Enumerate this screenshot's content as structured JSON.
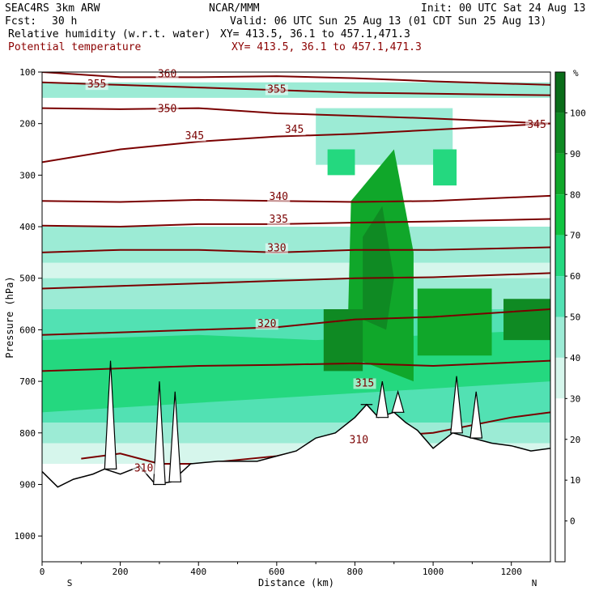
{
  "header": {
    "model": "SEAC4RS  3km ARW",
    "org": "NCAR/MMM",
    "init": "Init: 00 UTC Sat 24 Aug 13",
    "fcst_label": "Fcst:",
    "fcst_value": "30 h",
    "valid": "Valid: 06 UTC Sun 25 Aug 13 (01 CDT Sun 25 Aug 13)",
    "field1": "Relative humidity (w.r.t. water)",
    "field1_xy": "XY= 413.5, 36.1 to 457.1,471.3",
    "field2": "Potential temperature",
    "field2_xy": "XY= 413.5, 36.1 to 457.1,471.3"
  },
  "chart_data": {
    "type": "cross-section",
    "xlabel": "Distance (km)",
    "ylabel": "Pressure (hPa)",
    "xlim": [
      0,
      1300
    ],
    "ylim": [
      1050,
      100
    ],
    "x_ticks": [
      0,
      200,
      400,
      600,
      800,
      1000,
      1200
    ],
    "y_ticks": [
      100,
      200,
      300,
      400,
      500,
      600,
      700,
      800,
      900,
      1000
    ],
    "x_end_labels": {
      "left": "S",
      "right": "N"
    },
    "colorbar": {
      "unit": "%",
      "tick_labels": [
        0,
        10,
        20,
        30,
        40,
        50,
        60,
        70,
        80,
        90,
        100
      ],
      "colors": [
        "#ffffff",
        "#ffffff",
        "#ffffff",
        "#ffffff",
        "#d6f6ec",
        "#9cebd5",
        "#52e1b3",
        "#24d87f",
        "#10c441",
        "#10a72a",
        "#0f8a23",
        "#0a6c19"
      ]
    },
    "terrain_color": "#000000",
    "isentrope_color": "#7a0000",
    "isentropes": [
      {
        "theta": 360,
        "x": [
          0,
          200,
          400,
          600,
          800,
          1000,
          1300
        ],
        "p": [
          100,
          110,
          110,
          108,
          112,
          118,
          125
        ]
      },
      {
        "theta": 355,
        "x": [
          0,
          200,
          400,
          600,
          800,
          1000,
          1300
        ],
        "p": [
          120,
          125,
          130,
          135,
          140,
          142,
          145
        ]
      },
      {
        "theta": 350,
        "x": [
          0,
          200,
          400,
          600,
          800,
          1000,
          1300
        ],
        "p": [
          170,
          172,
          170,
          180,
          185,
          190,
          200
        ]
      },
      {
        "theta": 345,
        "x": [
          0,
          200,
          400,
          600,
          800,
          1000,
          1300
        ],
        "p": [
          275,
          250,
          235,
          225,
          220,
          212,
          200
        ]
      },
      {
        "theta": 340,
        "x": [
          0,
          200,
          400,
          600,
          800,
          1000,
          1300
        ],
        "p": [
          350,
          352,
          348,
          350,
          352,
          350,
          340
        ]
      },
      {
        "theta": 335,
        "x": [
          0,
          200,
          400,
          600,
          800,
          1000,
          1300
        ],
        "p": [
          398,
          400,
          395,
          395,
          392,
          390,
          385
        ]
      },
      {
        "theta": 330,
        "x": [
          0,
          200,
          400,
          600,
          800,
          1000,
          1300
        ],
        "p": [
          450,
          445,
          445,
          450,
          445,
          445,
          440
        ]
      },
      {
        "theta": 325,
        "x": [
          0,
          200,
          400,
          600,
          800,
          1000,
          1300
        ],
        "p": [
          520,
          515,
          510,
          505,
          500,
          498,
          490
        ]
      },
      {
        "theta": 320,
        "x": [
          0,
          200,
          400,
          600,
          800,
          1000,
          1300
        ],
        "p": [
          610,
          605,
          600,
          595,
          580,
          575,
          560
        ]
      },
      {
        "theta": 315,
        "x": [
          0,
          200,
          400,
          600,
          800,
          1000,
          1300
        ],
        "p": [
          680,
          675,
          670,
          668,
          665,
          670,
          660
        ]
      },
      {
        "theta": 310,
        "x": [
          100,
          200,
          300,
          400,
          600,
          800,
          1000,
          1200,
          1300
        ],
        "p": [
          850,
          840,
          860,
          860,
          845,
          810,
          800,
          770,
          760
        ]
      }
    ],
    "contour_labels": [
      {
        "text": "360",
        "x": 320,
        "p": 110
      },
      {
        "text": "355",
        "x": 140,
        "p": 130
      },
      {
        "text": "355",
        "x": 600,
        "p": 140
      },
      {
        "text": "350",
        "x": 320,
        "p": 178
      },
      {
        "text": "345",
        "x": 390,
        "p": 230
      },
      {
        "text": "345",
        "x": 645,
        "p": 218
      },
      {
        "text": "345",
        "x": 1265,
        "p": 208
      },
      {
        "text": "340",
        "x": 605,
        "p": 348
      },
      {
        "text": "335",
        "x": 605,
        "p": 392
      },
      {
        "text": "330",
        "x": 600,
        "p": 448
      },
      {
        "text": "320",
        "x": 575,
        "p": 595
      },
      {
        "text": "315",
        "x": 825,
        "p": 710
      },
      {
        "text": "310",
        "x": 810,
        "p": 820
      },
      {
        "text": "310",
        "x": 260,
        "p": 875
      }
    ],
    "terrain_surface": {
      "x": [
        0,
        40,
        80,
        130,
        160,
        200,
        250,
        290,
        330,
        380,
        450,
        550,
        650,
        700,
        750,
        800,
        830,
        860,
        900,
        930,
        960,
        1000,
        1050,
        1100,
        1150,
        1200,
        1250,
        1300
      ],
      "p": [
        875,
        905,
        890,
        880,
        870,
        880,
        865,
        900,
        895,
        860,
        855,
        855,
        835,
        810,
        800,
        770,
        745,
        770,
        760,
        780,
        795,
        830,
        800,
        810,
        820,
        825,
        835,
        830
      ]
    },
    "terrain_peaks": [
      {
        "x": 175,
        "p": 660
      },
      {
        "x": 300,
        "p": 700
      },
      {
        "x": 340,
        "p": 720
      },
      {
        "x": 830,
        "p": 745
      },
      {
        "x": 870,
        "p": 700
      },
      {
        "x": 910,
        "p": 720
      },
      {
        "x": 1060,
        "p": 690
      },
      {
        "x": 1110,
        "p": 720
      }
    ],
    "rh_regions": [
      {
        "rh": 35,
        "x": [
          0,
          1300,
          1300,
          0
        ],
        "p": [
          470,
          470,
          860,
          860
        ]
      },
      {
        "rh": 45,
        "x": [
          0,
          1300,
          1300,
          0
        ],
        "p": [
          500,
          500,
          820,
          820
        ]
      },
      {
        "rh": 55,
        "x": [
          0,
          1300,
          1300,
          0
        ],
        "p": [
          560,
          560,
          780,
          780
        ]
      },
      {
        "rh": 65,
        "x": [
          0,
          400,
          700,
          1300,
          1300,
          0
        ],
        "p": [
          620,
          610,
          620,
          600,
          700,
          760
        ]
      },
      {
        "rh": 40,
        "x": [
          0,
          1300,
          1300,
          0
        ],
        "p": [
          400,
          400,
          470,
          470
        ]
      },
      {
        "rh": 40,
        "x": [
          0,
          1300,
          1300,
          0
        ],
        "p": [
          120,
          120,
          150,
          150
        ]
      },
      {
        "rh": 45,
        "x": [
          700,
          1050,
          1050,
          700
        ],
        "p": [
          170,
          170,
          280,
          280
        ]
      },
      {
        "rh": 65,
        "x": [
          730,
          800,
          800,
          730
        ],
        "p": [
          250,
          250,
          300,
          300
        ]
      },
      {
        "rh": 65,
        "x": [
          1000,
          1060,
          1060,
          1000
        ],
        "p": [
          250,
          250,
          320,
          320
        ]
      },
      {
        "rh": 85,
        "x": [
          790,
          900,
          950,
          950,
          780
        ],
        "p": [
          350,
          250,
          450,
          700,
          650
        ]
      },
      {
        "rh": 95,
        "x": [
          820,
          870,
          900,
          880,
          820
        ],
        "p": [
          420,
          360,
          500,
          600,
          580
        ]
      },
      {
        "rh": 95,
        "x": [
          720,
          820,
          820,
          720
        ],
        "p": [
          560,
          560,
          680,
          680
        ]
      },
      {
        "rh": 85,
        "x": [
          960,
          1150,
          1150,
          960
        ],
        "p": [
          520,
          520,
          650,
          650
        ]
      },
      {
        "rh": 95,
        "x": [
          1180,
          1300,
          1300,
          1180
        ],
        "p": [
          540,
          540,
          620,
          620
        ]
      }
    ]
  }
}
